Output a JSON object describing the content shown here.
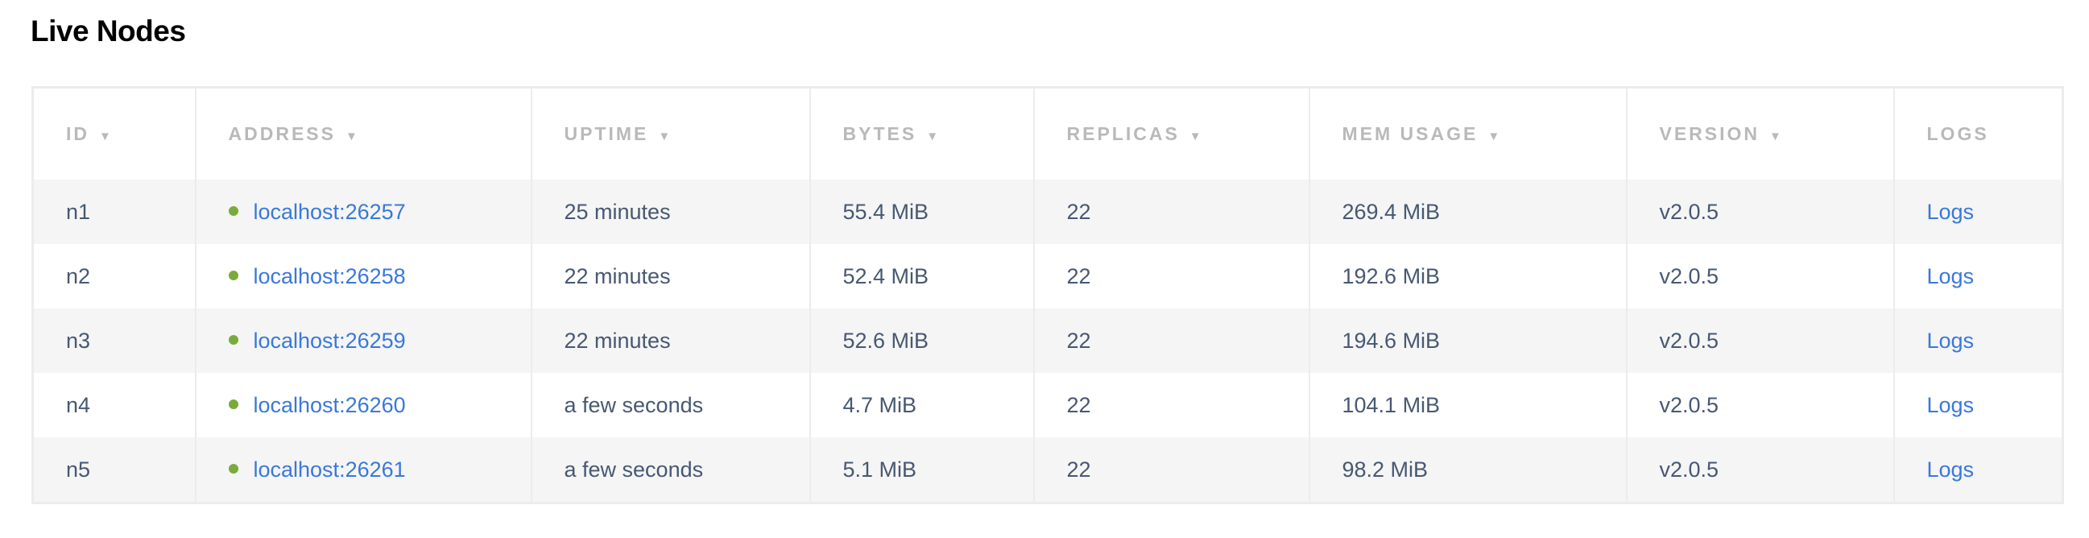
{
  "title": "Live Nodes",
  "colors": {
    "link": "#3a78db",
    "status_live": "#7aab3a",
    "header_text": "#b9b9b9",
    "cell_text": "#475872",
    "stripe": "#f5f5f5"
  },
  "columns": [
    {
      "label": "ID",
      "sortable": true
    },
    {
      "label": "ADDRESS",
      "sortable": true
    },
    {
      "label": "UPTIME",
      "sortable": true
    },
    {
      "label": "BYTES",
      "sortable": true
    },
    {
      "label": "REPLICAS",
      "sortable": true
    },
    {
      "label": "MEM USAGE",
      "sortable": true
    },
    {
      "label": "VERSION",
      "sortable": true
    },
    {
      "label": "LOGS",
      "sortable": false
    }
  ],
  "sort_icon": "▼",
  "rows": [
    {
      "id": "n1",
      "address": "localhost:26257",
      "uptime": "25 minutes",
      "bytes": "55.4 MiB",
      "replicas": "22",
      "mem": "269.4 MiB",
      "version": "v2.0.5",
      "logs": "Logs"
    },
    {
      "id": "n2",
      "address": "localhost:26258",
      "uptime": "22 minutes",
      "bytes": "52.4 MiB",
      "replicas": "22",
      "mem": "192.6 MiB",
      "version": "v2.0.5",
      "logs": "Logs"
    },
    {
      "id": "n3",
      "address": "localhost:26259",
      "uptime": "22 minutes",
      "bytes": "52.6 MiB",
      "replicas": "22",
      "mem": "194.6 MiB",
      "version": "v2.0.5",
      "logs": "Logs"
    },
    {
      "id": "n4",
      "address": "localhost:26260",
      "uptime": "a few seconds",
      "bytes": "4.7 MiB",
      "replicas": "22",
      "mem": "104.1 MiB",
      "version": "v2.0.5",
      "logs": "Logs"
    },
    {
      "id": "n5",
      "address": "localhost:26261",
      "uptime": "a few seconds",
      "bytes": "5.1 MiB",
      "replicas": "22",
      "mem": "98.2 MiB",
      "version": "v2.0.5",
      "logs": "Logs"
    }
  ]
}
